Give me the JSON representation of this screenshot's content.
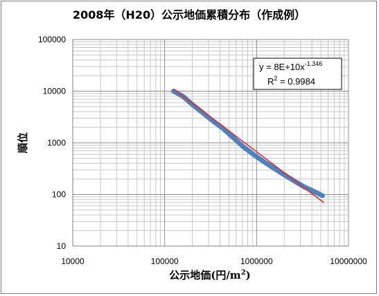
{
  "chart_data": {
    "type": "scatter",
    "title": "2008年（H20）公示地価累積分布（作成例）",
    "xlabel": "公示地価(円/m",
    "xlabel_sup": "2",
    "xlabel_close": ")",
    "ylabel": "順位",
    "xscale": "log",
    "yscale": "log",
    "xlim": [
      10000,
      10000000
    ],
    "ylim": [
      10,
      100000
    ],
    "x_ticks": [
      "10000",
      "100000",
      "1000000",
      "10000000"
    ],
    "y_ticks": [
      "100000",
      "10000",
      "1000",
      "100",
      "10"
    ],
    "grid": "major and minor",
    "series": [
      {
        "color": "#4f81bd",
        "points": [
          [
            125000,
            10000
          ],
          [
            160000,
            7800
          ],
          [
            200000,
            5500
          ],
          [
            260000,
            3800
          ],
          [
            330000,
            2700
          ],
          [
            430000,
            1900
          ],
          [
            560000,
            1250
          ],
          [
            720000,
            830
          ],
          [
            920000,
            600
          ],
          [
            1200000,
            430
          ],
          [
            1550000,
            320
          ],
          [
            2000000,
            240
          ],
          [
            2600000,
            180
          ],
          [
            3300000,
            140
          ],
          [
            4200000,
            115
          ],
          [
            5200000,
            95
          ]
        ]
      }
    ],
    "trendline": {
      "color": "#e03030",
      "coefficient": 80000000000,
      "exponent": -1.346,
      "x_range": [
        125000,
        5400000
      ]
    },
    "annotation": {
      "equation_prefix": "y = 8E+10x",
      "equation_exponent": "-1.346",
      "r2_prefix": "R",
      "r2_sup": "2",
      "r2_value": " = 0.9984",
      "placement": "top-right"
    }
  }
}
